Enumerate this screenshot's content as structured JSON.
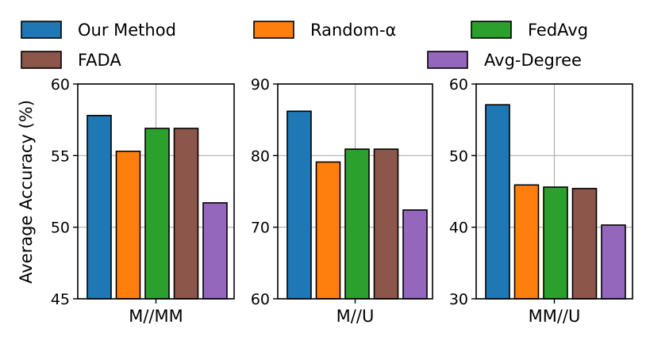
{
  "chart_data": {
    "type": "bar",
    "ylabel": "Average Accuracy (%)",
    "series_names": [
      "Our Method",
      "Random-α",
      "FedAvg",
      "FADA",
      "Avg-Degree"
    ],
    "colors": {
      "Our Method": "#1f77b4",
      "Random-α": "#ff7f0e",
      "FedAvg": "#2ca02c",
      "FADA": "#8c564b",
      "Avg-Degree": "#9467bd"
    },
    "panels": [
      {
        "label": "M//MM",
        "ylim": [
          45,
          60
        ],
        "yticks": [
          "45",
          "50",
          "55",
          "60"
        ],
        "values": [
          57.8,
          55.3,
          56.9,
          56.9,
          51.7
        ]
      },
      {
        "label": "M//U",
        "ylim": [
          60,
          90
        ],
        "yticks": [
          "60",
          "70",
          "80",
          "90"
        ],
        "values": [
          86.2,
          79.1,
          80.9,
          80.9,
          72.4
        ]
      },
      {
        "label": "MM//U",
        "ylim": [
          30,
          60
        ],
        "yticks": [
          "30",
          "40",
          "50",
          "60"
        ],
        "values": [
          57.1,
          45.9,
          45.6,
          45.4,
          40.3
        ]
      }
    ],
    "legend": {
      "placement": "top",
      "entries": [
        "Our Method",
        "Random-α",
        "FedAvg",
        "FADA",
        "Avg-Degree"
      ]
    }
  }
}
